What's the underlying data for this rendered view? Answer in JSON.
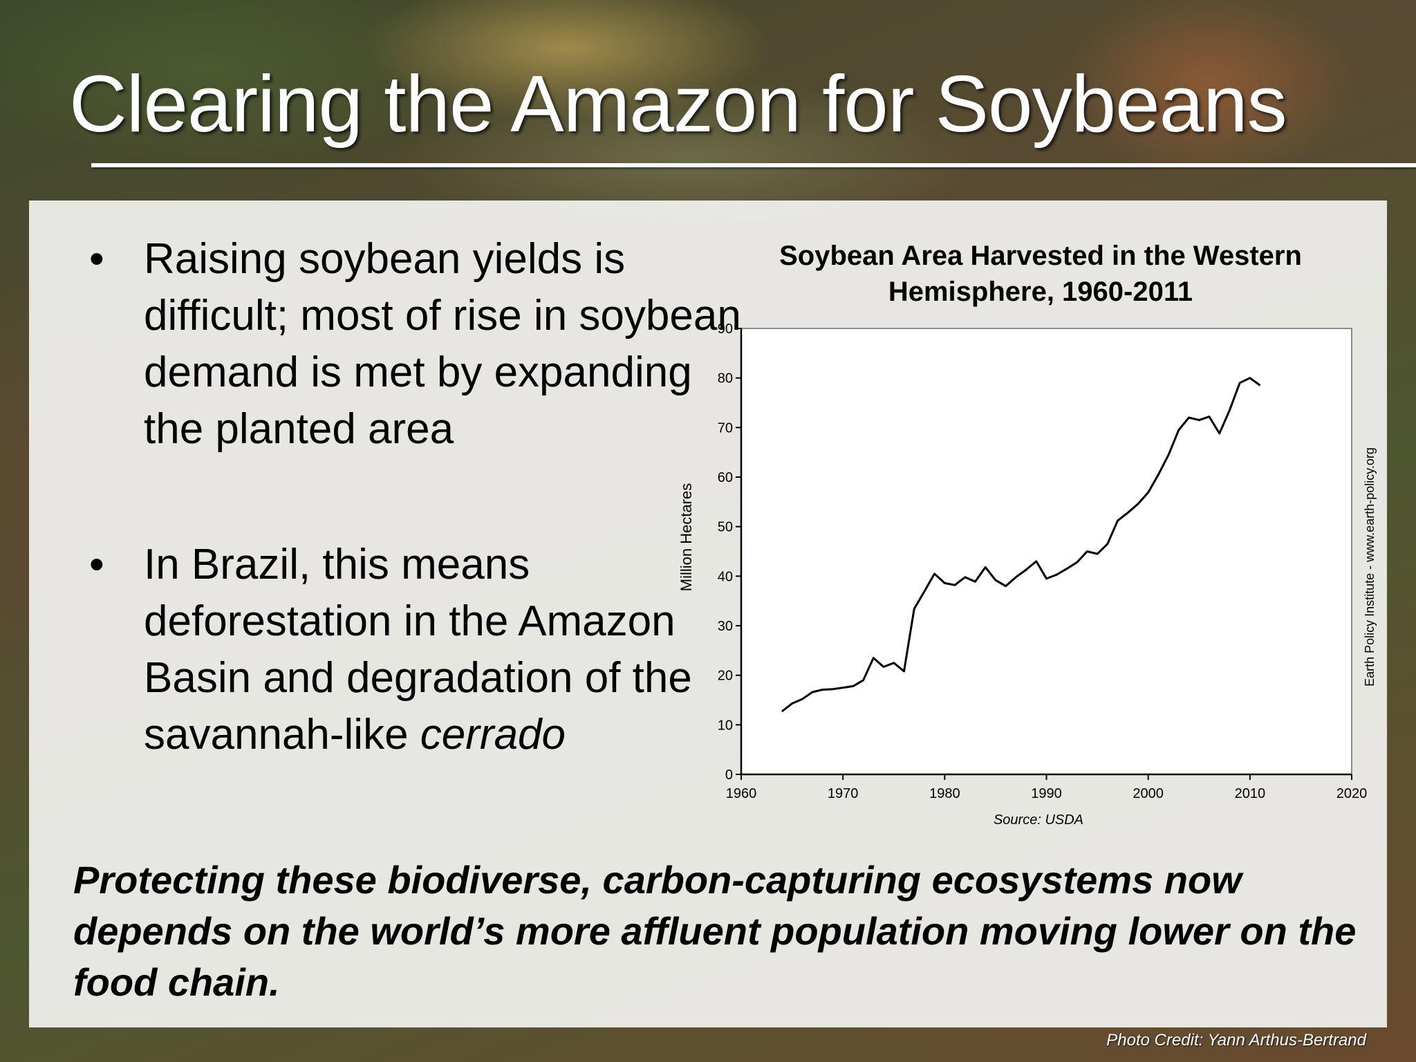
{
  "slide": {
    "title": "Clearing the Amazon for Soybeans",
    "bullets": [
      {
        "marker": "•",
        "text": "Raising soybean yields is difficult; most of rise in soybean demand is met by expanding the planted area"
      },
      {
        "marker": "•",
        "text_before": "In Brazil, this means deforestation in the Amazon Basin and degradation of the savannah-like ",
        "text_italic": "cerrado"
      }
    ],
    "closing": "Protecting these biodiverse, carbon-capturing ecosystems now depends on the world’s more affluent population moving lower on the food chain.",
    "photo_credit": "Photo Credit: Yann Arthus-Bertrand"
  },
  "chart_data": {
    "type": "line",
    "title_lines": [
      "Soybean Area Harvested in the Western",
      "Hemisphere, 1960-2011"
    ],
    "xlabel": "",
    "ylabel": "Million Hectares",
    "source": "Source: USDA",
    "side_note": "Earth Policy Institute - www.earth-policy.org",
    "xlim": [
      1960,
      2020
    ],
    "ylim": [
      0,
      90
    ],
    "x_ticks": [
      1960,
      1970,
      1980,
      1990,
      2000,
      2010,
      2020
    ],
    "y_ticks": [
      0,
      10,
      20,
      30,
      40,
      50,
      60,
      70,
      80,
      90
    ],
    "grid": "horizontal",
    "line_color": "#000000",
    "series": [
      {
        "x": [
          1964,
          1965,
          1966,
          1967,
          1968,
          1969,
          1970,
          1971,
          1972,
          1973,
          1974,
          1975,
          1976,
          1977,
          1978,
          1979,
          1980,
          1981,
          1982,
          1983,
          1984,
          1985,
          1986,
          1987,
          1988,
          1989,
          1990,
          1991,
          1992,
          1993,
          1994,
          1995,
          1996,
          1997,
          1998,
          1999,
          2000,
          2001,
          2002,
          2003,
          2004,
          2005,
          2006,
          2007,
          2008,
          2009,
          2010,
          2011
        ],
        "y": [
          12.7,
          14.3,
          15.2,
          16.6,
          17.1,
          17.2,
          17.5,
          17.8,
          19.0,
          23.5,
          21.7,
          22.5,
          20.8,
          33.4,
          36.9,
          40.5,
          38.6,
          38.2,
          39.8,
          38.9,
          41.8,
          39.2,
          38.0,
          39.8,
          41.3,
          43.0,
          39.5,
          40.3,
          41.5,
          42.8,
          45.0,
          44.5,
          46.5,
          51.2,
          52.8,
          54.6,
          56.9,
          60.5,
          64.5,
          69.5,
          72.0,
          71.5,
          72.2,
          68.8,
          73.5,
          79.0,
          80.0,
          78.5
        ]
      }
    ]
  }
}
